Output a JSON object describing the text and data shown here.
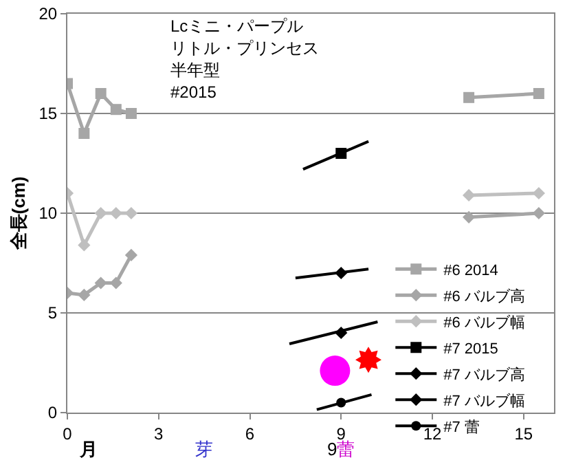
{
  "chart_data": {
    "type": "line",
    "title": "Lcミニ・パープル",
    "subtitle": "リトル・プリンセス",
    "ylabel": "全長(cm)",
    "xlim": [
      0,
      16
    ],
    "xticks": [
      0,
      3,
      6,
      9,
      12,
      15
    ],
    "ylim": [
      0,
      20
    ],
    "yticks": [
      0,
      5,
      10,
      15,
      20
    ],
    "grid": "y",
    "legend": "bottom right",
    "annotations": [
      "月",
      "芽",
      "9蕾",
      "半年型",
      "#2015"
    ],
    "series": [
      {
        "name": "#6 2014",
        "color": "#a6a6a6",
        "marker": "square",
        "x": [
          0,
          0.55,
          1.1,
          1.6,
          2.1,
          8,
          13.2,
          15.5
        ],
        "values": [
          16.5,
          14,
          16,
          15.2,
          15,
          null,
          15.8,
          16
        ]
      },
      {
        "name": "#6 バルブ高",
        "color": "#a6a6a6",
        "marker": "diamond",
        "x": [
          0,
          0.55,
          1.1,
          1.6,
          2.1,
          8,
          13.2,
          15.5
        ],
        "values": [
          6,
          5.9,
          6.5,
          6.5,
          7.9,
          null,
          9.8,
          10
        ]
      },
      {
        "name": "#6 バルブ幅",
        "color": "#bfbfbf",
        "marker": "diamond",
        "x": [
          0,
          0.55,
          1.1,
          1.6,
          2.1,
          8,
          13.2,
          15.5
        ],
        "values": [
          11,
          8.4,
          10,
          10,
          10,
          null,
          10.9,
          11
        ]
      },
      {
        "name": "#7 2015",
        "color": "#000000",
        "marker": "square",
        "x": [
          9
        ],
        "values": [
          13
        ]
      },
      {
        "name": "#7 バルブ高",
        "color": "#000000",
        "marker": "diamond",
        "x": [
          9
        ],
        "values": [
          4
        ]
      },
      {
        "name": "#7 バルブ幅",
        "color": "#000000",
        "marker": "diamond",
        "x": [
          9
        ],
        "values": [
          7
        ]
      },
      {
        "name": "#7 蕾",
        "color": "#000000",
        "marker": "circle",
        "x": [
          9
        ],
        "values": [
          0.5
        ]
      },
      {
        "color": "#000000",
        "marker": "none",
        "x": [
          7.75,
          9.9
        ],
        "values": [
          12.2,
          13.6
        ]
      },
      {
        "color": "#000000",
        "marker": "none",
        "x": [
          7.3,
          10.2
        ],
        "values": [
          3.45,
          4.55
        ]
      },
      {
        "color": "#000000",
        "marker": "none",
        "x": [
          7.5,
          9.9
        ],
        "values": [
          6.75,
          7.2
        ]
      },
      {
        "color": "#000000",
        "marker": "none",
        "x": [
          8.2,
          10
        ],
        "values": [
          0.15,
          0.9
        ]
      }
    ]
  }
}
